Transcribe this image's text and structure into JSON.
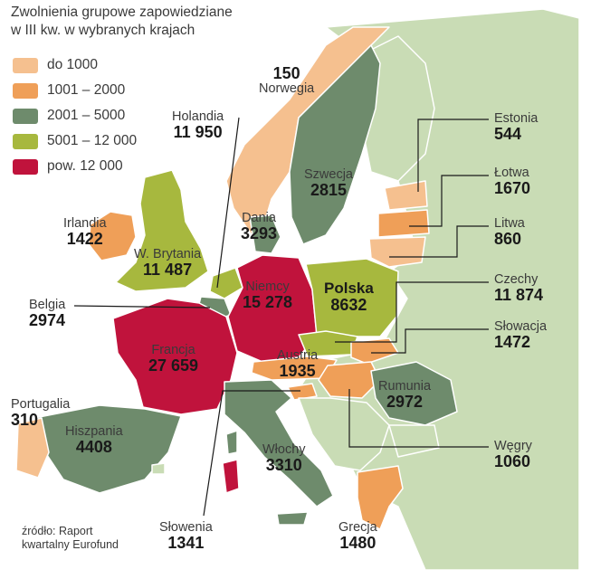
{
  "title": {
    "line1": "Zwolnienia grupowe zapowiedziane",
    "line2": "w III kw. w wybranych krajach"
  },
  "colors": {
    "cat1": "#f5c08f",
    "cat2": "#ef9f58",
    "cat3": "#6e8b6c",
    "cat4": "#a7b83e",
    "cat5": "#c0133c",
    "other": "#c9dcb5",
    "border": "#ffffff"
  },
  "legend": [
    {
      "label": "do 1000",
      "color": "#f5c08f"
    },
    {
      "label": "1001 – 2000",
      "color": "#ef9f58"
    },
    {
      "label": "2001 – 5000",
      "color": "#6e8b6c"
    },
    {
      "label": "5001 – 12 000",
      "color": "#a7b83e"
    },
    {
      "label": "pow. 12 000",
      "color": "#c0133c"
    }
  ],
  "countries": {
    "norwegia": {
      "name": "Norwegia",
      "value": "150"
    },
    "szwecja": {
      "name": "Szwecja",
      "value": "2815"
    },
    "holandia": {
      "name": "Holandia",
      "value": "11 950"
    },
    "estonia": {
      "name": "Estonia",
      "value": "544"
    },
    "lotwa": {
      "name": "Łotwa",
      "value": "1670"
    },
    "litwa": {
      "name": "Litwa",
      "value": "860"
    },
    "irlandia": {
      "name": "Irlandia",
      "value": "1422"
    },
    "wbrytania": {
      "name": "W. Brytania",
      "value": "11 487"
    },
    "dania": {
      "name": "Dania",
      "value": "3293"
    },
    "niemcy": {
      "name": "Niemcy",
      "value": "15 278"
    },
    "polska": {
      "name": "Polska",
      "value": "8632"
    },
    "belgia": {
      "name": "Belgia",
      "value": "2974"
    },
    "czechy": {
      "name": "Czechy",
      "value": "11 874"
    },
    "slowacja": {
      "name": "Słowacja",
      "value": "1472"
    },
    "austria": {
      "name": "Austria",
      "value": "1935"
    },
    "francja": {
      "name": "Francja",
      "value": "27 659"
    },
    "rumunia": {
      "name": "Rumunia",
      "value": "2972"
    },
    "portugalia": {
      "name": "Portugalia",
      "value": "310"
    },
    "hiszpania": {
      "name": "Hiszpania",
      "value": "4408"
    },
    "wlochy": {
      "name": "Włochy",
      "value": "3310"
    },
    "wegry": {
      "name": "Węgry",
      "value": "1060"
    },
    "slowenia": {
      "name": "Słowenia",
      "value": "1341"
    },
    "grecja": {
      "name": "Grecja",
      "value": "1480"
    }
  },
  "source": {
    "line1": "źródło: Raport",
    "line2": "kwartalny Eurofund"
  }
}
